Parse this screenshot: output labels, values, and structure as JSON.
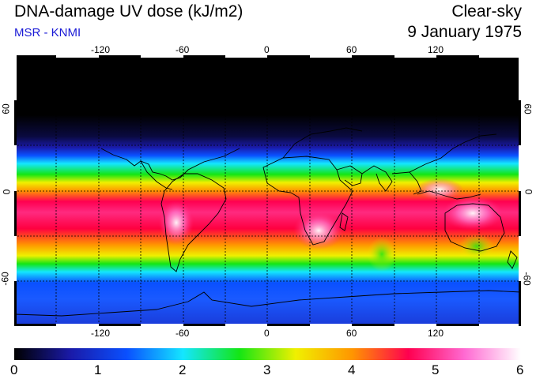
{
  "header": {
    "title": "DNA-damage UV dose (kJ/m2)",
    "credit": "MSR - KNMI",
    "condition": "Clear-sky",
    "date": "9 January 1975"
  },
  "axes": {
    "lon_ticks": [
      "-120",
      "-60",
      "0",
      "60",
      "120"
    ],
    "lat_ticks_left": [
      "60",
      "0",
      "-60"
    ],
    "lat_ticks_right": [
      "60",
      "0",
      "-60"
    ]
  },
  "colorbar": {
    "labels": [
      "0",
      "1",
      "2",
      "3",
      "4",
      "5",
      "6"
    ],
    "min": 0,
    "max": 6,
    "stops": [
      "#000000",
      "#1a1aa8",
      "#0a50ff",
      "#14e6ff",
      "#14e614",
      "#f0f000",
      "#ff9600",
      "#ff0050",
      "#ff6ad2",
      "#ffffff"
    ]
  },
  "colors": {
    "background": "#ffffff",
    "credit": "#1a1ad6",
    "gridline": "#000000"
  }
}
